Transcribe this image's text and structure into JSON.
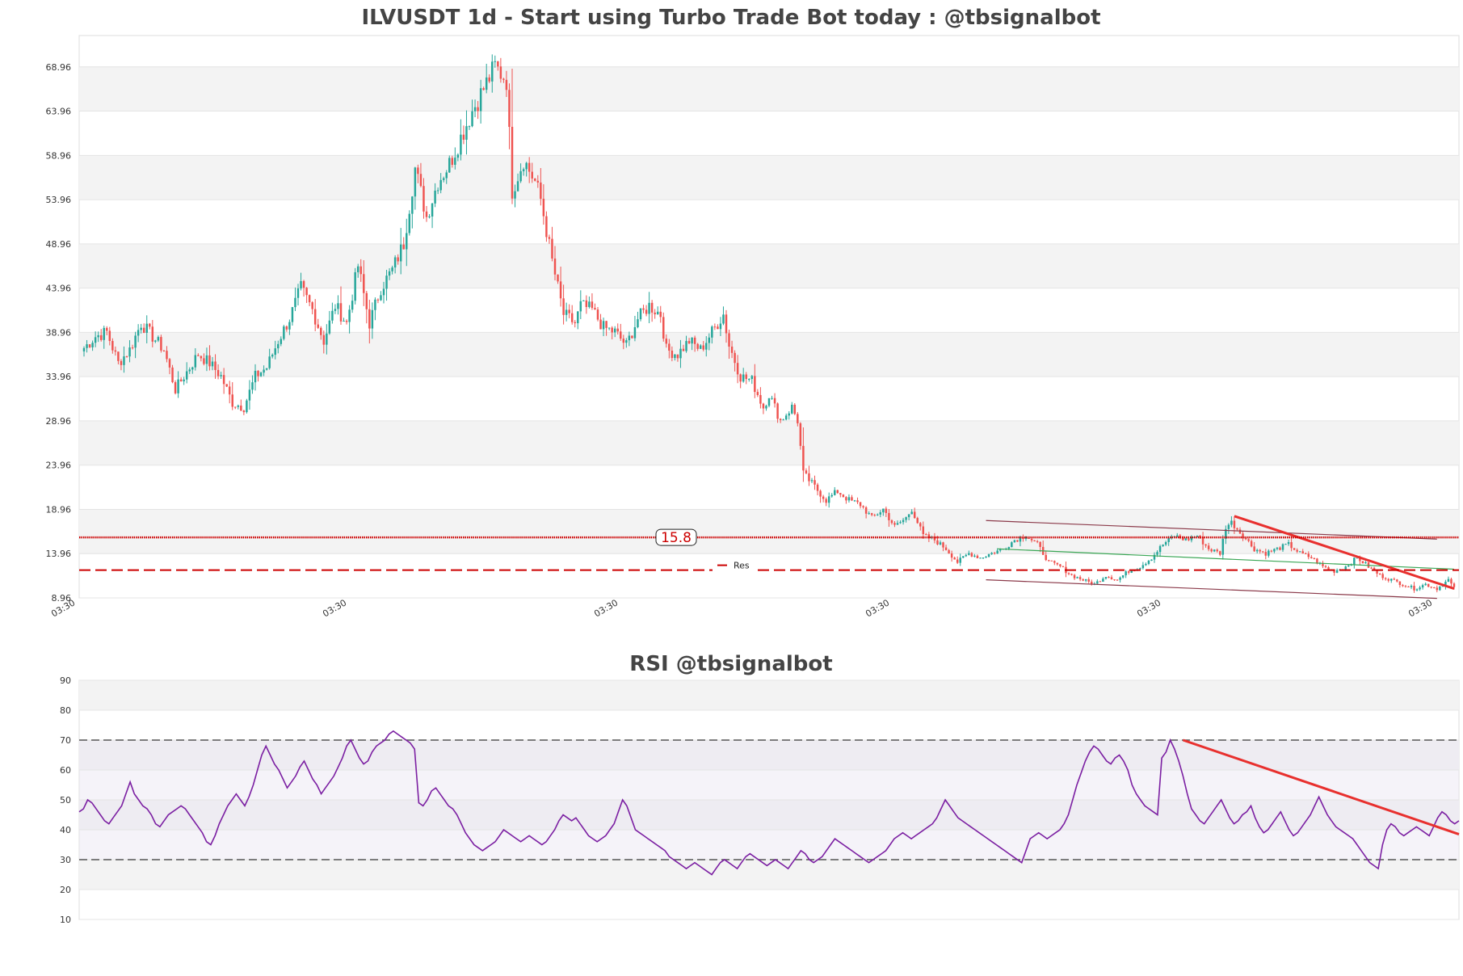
{
  "chart_data": [
    {
      "type": "candlestick",
      "title": "ILVUSDT 1d - Start using Turbo Trade Bot today : @tbsignalbot",
      "ylim": [
        8.96,
        72.5
      ],
      "yticks": [
        "68.96",
        "63.96",
        "58.96",
        "53.96",
        "48.96",
        "43.96",
        "38.96",
        "33.96",
        "28.96",
        "23.96",
        "18.96",
        "13.96",
        "8.96"
      ],
      "xticks": [
        "03:30",
        "03:30",
        "03:30",
        "03:30",
        "03:30",
        "03:30"
      ],
      "grid": "horizontal bands",
      "colors": {
        "up": "#26a69a",
        "down": "#ef5350",
        "level": "#cc0000",
        "channel": "#8b3a4a",
        "mid_channel": "#3aa655",
        "trend": "#e8302e"
      },
      "levels": [
        {
          "value": 15.8,
          "label": "15.8",
          "style": "dotted"
        },
        {
          "value": 12.1,
          "label": "Res",
          "style": "dashed"
        }
      ],
      "close_path": [
        [
          0,
          37.2
        ],
        [
          4,
          38.5
        ],
        [
          8,
          39.0
        ],
        [
          12,
          35.5
        ],
        [
          16,
          37.0
        ],
        [
          20,
          40.0
        ],
        [
          24,
          38.5
        ],
        [
          28,
          37.0
        ],
        [
          32,
          32.5
        ],
        [
          36,
          34.5
        ],
        [
          40,
          36.5
        ],
        [
          44,
          35.5
        ],
        [
          48,
          34.0
        ],
        [
          52,
          31.0
        ],
        [
          56,
          30.5
        ],
        [
          60,
          34.0
        ],
        [
          64,
          35.0
        ],
        [
          68,
          38.0
        ],
        [
          72,
          40.5
        ],
        [
          76,
          44.0
        ],
        [
          80,
          41.5
        ],
        [
          84,
          38.0
        ],
        [
          88,
          42.0
        ],
        [
          92,
          40.0
        ],
        [
          96,
          46.5
        ],
        [
          100,
          40.0
        ],
        [
          104,
          44.0
        ],
        [
          108,
          46.0
        ],
        [
          112,
          49.0
        ],
        [
          116,
          57.5
        ],
        [
          120,
          52.0
        ],
        [
          124,
          56.0
        ],
        [
          128,
          58.0
        ],
        [
          132,
          61.0
        ],
        [
          136,
          64.0
        ],
        [
          140,
          66.5
        ],
        [
          144,
          69.0
        ],
        [
          148,
          67.5
        ],
        [
          150,
          55.0
        ],
        [
          154,
          58.5
        ],
        [
          158,
          56.0
        ],
        [
          160,
          54.0
        ],
        [
          164,
          47.0
        ],
        [
          168,
          41.0
        ],
        [
          172,
          40.0
        ],
        [
          174,
          42.0
        ],
        [
          178,
          41.5
        ],
        [
          182,
          39.5
        ],
        [
          186,
          39.0
        ],
        [
          190,
          37.5
        ],
        [
          194,
          40.5
        ],
        [
          198,
          42.0
        ],
        [
          202,
          41.0
        ],
        [
          204,
          37.0
        ],
        [
          208,
          36.5
        ],
        [
          212,
          38.0
        ],
        [
          216,
          37.0
        ],
        [
          220,
          39.0
        ],
        [
          224,
          41.0
        ],
        [
          226,
          37.5
        ],
        [
          230,
          34.0
        ],
        [
          234,
          33.5
        ],
        [
          238,
          30.5
        ],
        [
          240,
          32.0
        ],
        [
          244,
          29.0
        ],
        [
          248,
          30.5
        ],
        [
          250,
          29.0
        ],
        [
          252,
          23.0
        ],
        [
          256,
          21.5
        ],
        [
          260,
          20.0
        ],
        [
          264,
          21.0
        ],
        [
          268,
          20.0
        ],
        [
          272,
          19.5
        ],
        [
          276,
          18.0
        ],
        [
          280,
          19.0
        ],
        [
          284,
          17.0
        ],
        [
          288,
          18.0
        ],
        [
          290,
          19.0
        ],
        [
          294,
          16.0
        ],
        [
          298,
          15.5
        ],
        [
          302,
          14.5
        ],
        [
          306,
          13.0
        ],
        [
          310,
          14.0
        ],
        [
          314,
          13.5
        ],
        [
          318,
          14.0
        ],
        [
          322,
          14.5
        ],
        [
          326,
          15.5
        ],
        [
          330,
          16.0
        ],
        [
          334,
          15.0
        ],
        [
          338,
          13.0
        ],
        [
          342,
          12.5
        ],
        [
          346,
          11.5
        ],
        [
          350,
          11.0
        ],
        [
          354,
          10.5
        ],
        [
          358,
          11.5
        ],
        [
          362,
          11.0
        ],
        [
          366,
          12.0
        ],
        [
          370,
          12.5
        ],
        [
          374,
          13.5
        ],
        [
          378,
          15.0
        ],
        [
          382,
          16.0
        ],
        [
          386,
          15.5
        ],
        [
          390,
          16.0
        ],
        [
          394,
          14.5
        ],
        [
          398,
          14.0
        ],
        [
          400,
          17.0
        ],
        [
          402,
          17.5
        ],
        [
          406,
          16.0
        ],
        [
          410,
          14.5
        ],
        [
          414,
          14.0
        ],
        [
          418,
          14.5
        ],
        [
          422,
          15.0
        ],
        [
          426,
          14.0
        ],
        [
          430,
          13.5
        ],
        [
          434,
          12.5
        ],
        [
          438,
          12.0
        ],
        [
          442,
          12.5
        ],
        [
          446,
          13.5
        ],
        [
          450,
          12.5
        ],
        [
          454,
          11.5
        ],
        [
          458,
          11.0
        ],
        [
          462,
          10.5
        ],
        [
          466,
          10.0
        ],
        [
          470,
          10.5
        ],
        [
          474,
          10.0
        ],
        [
          478,
          11.0
        ],
        [
          480,
          10.0
        ]
      ],
      "channel_lines": [
        {
          "from": [
            316,
            17.7
          ],
          "to": [
            474,
            15.6
          ]
        },
        {
          "from": [
            316,
            11.0
          ],
          "to": [
            474,
            8.9
          ]
        },
        {
          "from": [
            320,
            14.5
          ],
          "to": [
            480,
            12.2
          ]
        }
      ],
      "trend_line": {
        "from": [
          403,
          18.2
        ],
        "to": [
          480,
          10.0
        ]
      }
    },
    {
      "type": "line",
      "title": "RSI @tbsignalbot",
      "ylim": [
        10,
        90
      ],
      "yticks": [
        "90",
        "80",
        "70",
        "60",
        "50",
        "40",
        "30",
        "20",
        "10"
      ],
      "overbought": 70,
      "oversold": 30,
      "colors": {
        "line": "#7b1fa2",
        "bounds": "#555555",
        "trend": "#e8302e",
        "band": "#e9e4f1"
      },
      "values": [
        46,
        47,
        50,
        49,
        47,
        45,
        43,
        42,
        44,
        46,
        48,
        52,
        56,
        52,
        50,
        48,
        47,
        45,
        42,
        41,
        43,
        45,
        46,
        47,
        48,
        47,
        45,
        43,
        41,
        39,
        36,
        35,
        38,
        42,
        45,
        48,
        50,
        52,
        50,
        48,
        51,
        55,
        60,
        65,
        68,
        65,
        62,
        60,
        57,
        54,
        56,
        58,
        61,
        63,
        60,
        57,
        55,
        52,
        54,
        56,
        58,
        61,
        64,
        68,
        70,
        67,
        64,
        62,
        63,
        66,
        68,
        69,
        70,
        72,
        73,
        72,
        71,
        70,
        69,
        67,
        49,
        48,
        50,
        53,
        54,
        52,
        50,
        48,
        47,
        45,
        42,
        39,
        37,
        35,
        34,
        33,
        34,
        35,
        36,
        38,
        40,
        39,
        38,
        37,
        36,
        37,
        38,
        37,
        36,
        35,
        36,
        38,
        40,
        43,
        45,
        44,
        43,
        44,
        42,
        40,
        38,
        37,
        36,
        37,
        38,
        40,
        42,
        46,
        50,
        48,
        44,
        40,
        39,
        38,
        37,
        36,
        35,
        34,
        33,
        31,
        30,
        29,
        28,
        27,
        28,
        29,
        28,
        27,
        26,
        25,
        27,
        29,
        30,
        29,
        28,
        27,
        29,
        31,
        32,
        31,
        30,
        29,
        28,
        29,
        30,
        29,
        28,
        27,
        29,
        31,
        33,
        32,
        30,
        29,
        30,
        31,
        33,
        35,
        37,
        36,
        35,
        34,
        33,
        32,
        31,
        30,
        29,
        30,
        31,
        32,
        33,
        35,
        37,
        38,
        39,
        38,
        37,
        38,
        39,
        40,
        41,
        42,
        44,
        47,
        50,
        48,
        46,
        44,
        43,
        42,
        41,
        40,
        39,
        38,
        37,
        36,
        35,
        34,
        33,
        32,
        31,
        30,
        29,
        33,
        37,
        38,
        39,
        38,
        37,
        38,
        39,
        40,
        42,
        45,
        50,
        55,
        59,
        63,
        66,
        68,
        67,
        65,
        63,
        62,
        64,
        65,
        63,
        60,
        55,
        52,
        50,
        48,
        47,
        46,
        45,
        64,
        66,
        70,
        67,
        63,
        58,
        52,
        47,
        45,
        43,
        42,
        44,
        46,
        48,
        50,
        47,
        44,
        42,
        43,
        45,
        46,
        48,
        44,
        41,
        39,
        40,
        42,
        44,
        46,
        43,
        40,
        38,
        39,
        41,
        43,
        45,
        48,
        51,
        48,
        45,
        43,
        41,
        40,
        39,
        38,
        37,
        35,
        33,
        31,
        29,
        28,
        27,
        35,
        40,
        42,
        41,
        39,
        38,
        39,
        40,
        41,
        40,
        39,
        38,
        41,
        44,
        46,
        45,
        43,
        42,
        43
      ],
      "trend_line": {
        "from": [
          0.8,
          70
        ],
        "to": [
          1.0,
          38.5
        ]
      }
    }
  ]
}
